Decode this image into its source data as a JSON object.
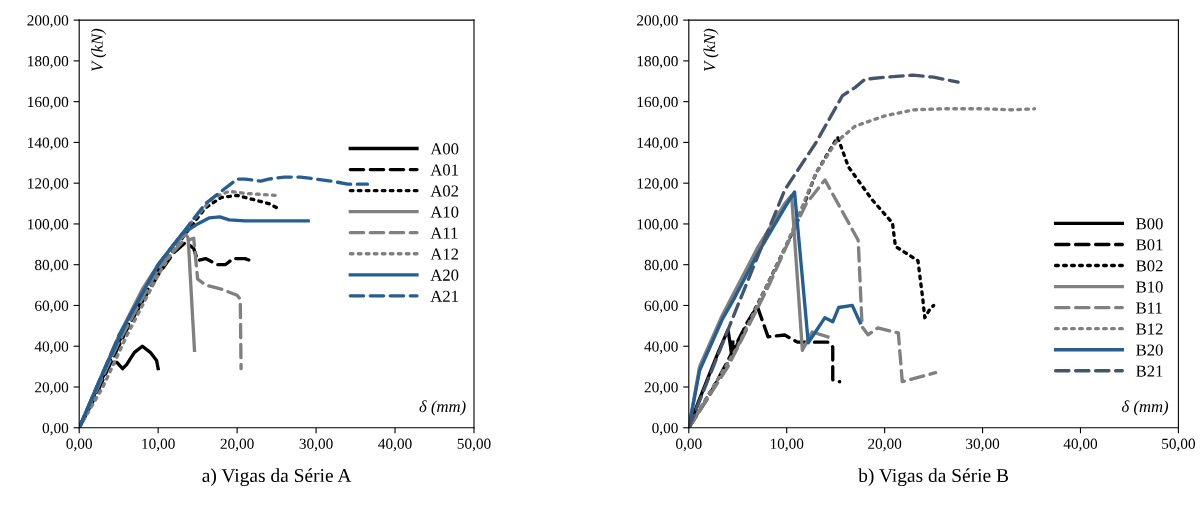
{
  "chart_data": [
    {
      "type": "line",
      "title": "a) Vigas da Série A",
      "xlabel": "δ (mm)",
      "ylabel": "V (kN)",
      "legend": "center right",
      "grid": false,
      "xlim": [
        0,
        50
      ],
      "ylim": [
        0,
        200
      ],
      "xticks": [
        {
          "value": 0,
          "label": "0,00"
        },
        {
          "value": 10,
          "label": "10,00"
        },
        {
          "value": 20,
          "label": "20,00"
        },
        {
          "value": 30,
          "label": "30,00"
        },
        {
          "value": 40,
          "label": "40,00"
        },
        {
          "value": 50,
          "label": "50,00"
        }
      ],
      "yticks": [
        {
          "value": 0,
          "label": "0,00"
        },
        {
          "value": 20,
          "label": "20,00"
        },
        {
          "value": 40,
          "label": "40,00"
        },
        {
          "value": 60,
          "label": "60,00"
        },
        {
          "value": 80,
          "label": "80,00"
        },
        {
          "value": 100,
          "label": "100,00"
        },
        {
          "value": 120,
          "label": "120,00"
        },
        {
          "value": 140,
          "label": "140,00"
        },
        {
          "value": 160,
          "label": "160,00"
        },
        {
          "value": 180,
          "label": "180,00"
        },
        {
          "value": 200,
          "label": "200,00"
        }
      ],
      "series": [
        {
          "name": "A00",
          "color": "#000000",
          "line_style": "solid",
          "x": [
            0,
            1,
            2,
            3,
            4,
            4.8,
            5.5,
            6,
            7,
            8,
            9,
            9.8,
            10
          ],
          "values": [
            0,
            8,
            17,
            25,
            32,
            32,
            29,
            31,
            37,
            40,
            37,
            33,
            29
          ]
        },
        {
          "name": "A01",
          "color": "#000000",
          "line_style": "dashed",
          "x": [
            0,
            2,
            4,
            6,
            8,
            10,
            12,
            13.5,
            14.5,
            15,
            16,
            17.5,
            18.5,
            19.5,
            21,
            21.7
          ],
          "values": [
            0,
            15,
            32,
            48,
            62,
            75,
            86,
            91,
            88,
            82,
            83,
            80,
            80,
            83,
            83,
            82
          ]
        },
        {
          "name": "A02",
          "color": "#000000",
          "line_style": "dotted",
          "x": [
            0,
            5,
            10,
            14,
            16,
            18,
            20,
            22,
            24,
            25
          ],
          "values": [
            0,
            42,
            77,
            98,
            108,
            113,
            114,
            112,
            110,
            108
          ]
        },
        {
          "name": "A10",
          "color": "#808080",
          "line_style": "solid",
          "x": [
            0,
            2,
            5,
            8,
            10,
            12,
            13.5,
            13.8,
            14.6
          ],
          "values": [
            0,
            18,
            45,
            68,
            80,
            90,
            95,
            93,
            38
          ]
        },
        {
          "name": "A11",
          "color": "#808080",
          "line_style": "dashed",
          "x": [
            0,
            5,
            10,
            13,
            14.5,
            15,
            16,
            18,
            20,
            20.4,
            20.5
          ],
          "values": [
            0,
            42,
            78,
            91,
            93,
            73,
            70,
            68,
            65,
            63,
            29
          ]
        },
        {
          "name": "A12",
          "color": "#808080",
          "line_style": "dotted",
          "x": [
            0,
            3,
            6,
            10,
            14,
            17,
            19,
            21,
            25
          ],
          "values": [
            0,
            20,
            45,
            75,
            100,
            113,
            116,
            115,
            114
          ]
        },
        {
          "name": "A20",
          "color": "#255e91",
          "line_style": "solid",
          "x": [
            0,
            3,
            6,
            10,
            13,
            15,
            16.5,
            17.8,
            19,
            21,
            25,
            29
          ],
          "values": [
            0,
            27,
            52,
            80,
            95,
            100,
            103,
            103.5,
            102,
            101.5,
            101.5,
            101.5
          ]
        },
        {
          "name": "A21",
          "color": "#255e91",
          "line_style": "dashed",
          "x": [
            0,
            5,
            10,
            14,
            16,
            18,
            20,
            21,
            23,
            24,
            26,
            28,
            30,
            32,
            34,
            36.5
          ],
          "values": [
            0,
            45,
            80,
            100,
            110,
            116,
            122,
            122,
            121,
            122,
            123,
            123,
            122,
            121,
            119.5,
            119.5
          ]
        }
      ]
    },
    {
      "type": "line",
      "title": "b) Vigas da Série B",
      "xlabel": "δ (mm)",
      "ylabel": "V (kN)",
      "legend": "lower right",
      "grid": false,
      "xlim": [
        0,
        50
      ],
      "ylim": [
        0,
        200
      ],
      "xticks": [
        {
          "value": 0,
          "label": "0,00"
        },
        {
          "value": 10,
          "label": "10,00"
        },
        {
          "value": 20,
          "label": "20,00"
        },
        {
          "value": 30,
          "label": "30,00"
        },
        {
          "value": 40,
          "label": "40,00"
        },
        {
          "value": 50,
          "label": "50,00"
        }
      ],
      "yticks": [
        {
          "value": 0,
          "label": "0,00"
        },
        {
          "value": 20,
          "label": "20,00"
        },
        {
          "value": 40,
          "label": "40,00"
        },
        {
          "value": 60,
          "label": "60,00"
        },
        {
          "value": 80,
          "label": "80,00"
        },
        {
          "value": 100,
          "label": "100,00"
        },
        {
          "value": 120,
          "label": "120,00"
        },
        {
          "value": 140,
          "label": "140,00"
        },
        {
          "value": 160,
          "label": "160,00"
        },
        {
          "value": 180,
          "label": "180,00"
        },
        {
          "value": 200,
          "label": "200,00"
        }
      ],
      "series": [
        {
          "name": "B00",
          "color": "#000000",
          "line_style": "solid",
          "x": [
            0,
            1,
            2,
            3,
            4,
            4.2,
            4.4,
            4.5
          ],
          "values": [
            0,
            13,
            25,
            37,
            48,
            42,
            35,
            42
          ]
        },
        {
          "name": "B01",
          "color": "#000000",
          "line_style": "dashed",
          "x": [
            0,
            2,
            4,
            6,
            7,
            8.1,
            9.8,
            11.1,
            14.2,
            14.7,
            14.7,
            15.4
          ],
          "values": [
            0,
            15,
            33,
            52,
            59.5,
            44.6,
            45.5,
            42,
            42,
            39.7,
            23.5,
            22.6
          ]
        },
        {
          "name": "B02",
          "color": "#000000",
          "line_style": "dotted",
          "x": [
            0,
            4,
            8,
            11,
            13,
            15.2,
            16.3,
            18.7,
            20.8,
            21.1,
            23.4,
            23.9,
            24.1,
            24.6,
            25
          ],
          "values": [
            0,
            32,
            70,
            100,
            125,
            142.6,
            128,
            112,
            100.5,
            89,
            82,
            63,
            54,
            58,
            60
          ]
        },
        {
          "name": "B10",
          "color": "#808080",
          "line_style": "solid",
          "x": [
            0,
            1.1,
            3.4,
            4.7,
            7.1,
            9.8,
            10.5,
            11.6,
            12.6,
            14.2
          ],
          "values": [
            0,
            30,
            55,
            67,
            89,
            110,
            114,
            38,
            47,
            44.6
          ]
        },
        {
          "name": "B11",
          "color": "#808080",
          "line_style": "dashed",
          "x": [
            0,
            4,
            8,
            11,
            12,
            13.9,
            17.3,
            17.7,
            18.3,
            19.3,
            21.4,
            21.8,
            25.2
          ],
          "values": [
            0,
            30,
            68,
            100,
            110,
            121.6,
            92,
            49.5,
            45.6,
            49,
            46.5,
            22.6,
            27
          ]
        },
        {
          "name": "B12",
          "color": "#808080",
          "line_style": "dotted",
          "x": [
            0,
            5,
            10,
            13,
            15,
            17,
            20,
            23,
            26,
            30,
            33,
            35.3
          ],
          "values": [
            0,
            40,
            90,
            125,
            140,
            148,
            153,
            156,
            156.5,
            156.5,
            156,
            156.5
          ]
        },
        {
          "name": "B20",
          "color": "#255e91",
          "line_style": "solid",
          "x": [
            0,
            1.1,
            3.4,
            4.7,
            7.1,
            9.8,
            10.8,
            12.2,
            13.9,
            14.7,
            15.3,
            16.7,
            17.5
          ],
          "values": [
            0,
            28,
            53,
            64,
            86,
            108,
            115.7,
            41.7,
            54,
            52,
            59,
            60,
            51.5
          ]
        },
        {
          "name": "B21",
          "color": "#44546a",
          "line_style": "dashed",
          "x": [
            0,
            5,
            9.8,
            13,
            15.7,
            17,
            18,
            20,
            22.9,
            25,
            27.5
          ],
          "values": [
            0,
            60,
            116.7,
            140,
            163,
            167,
            171,
            172,
            173,
            172,
            169.6
          ]
        }
      ]
    }
  ]
}
